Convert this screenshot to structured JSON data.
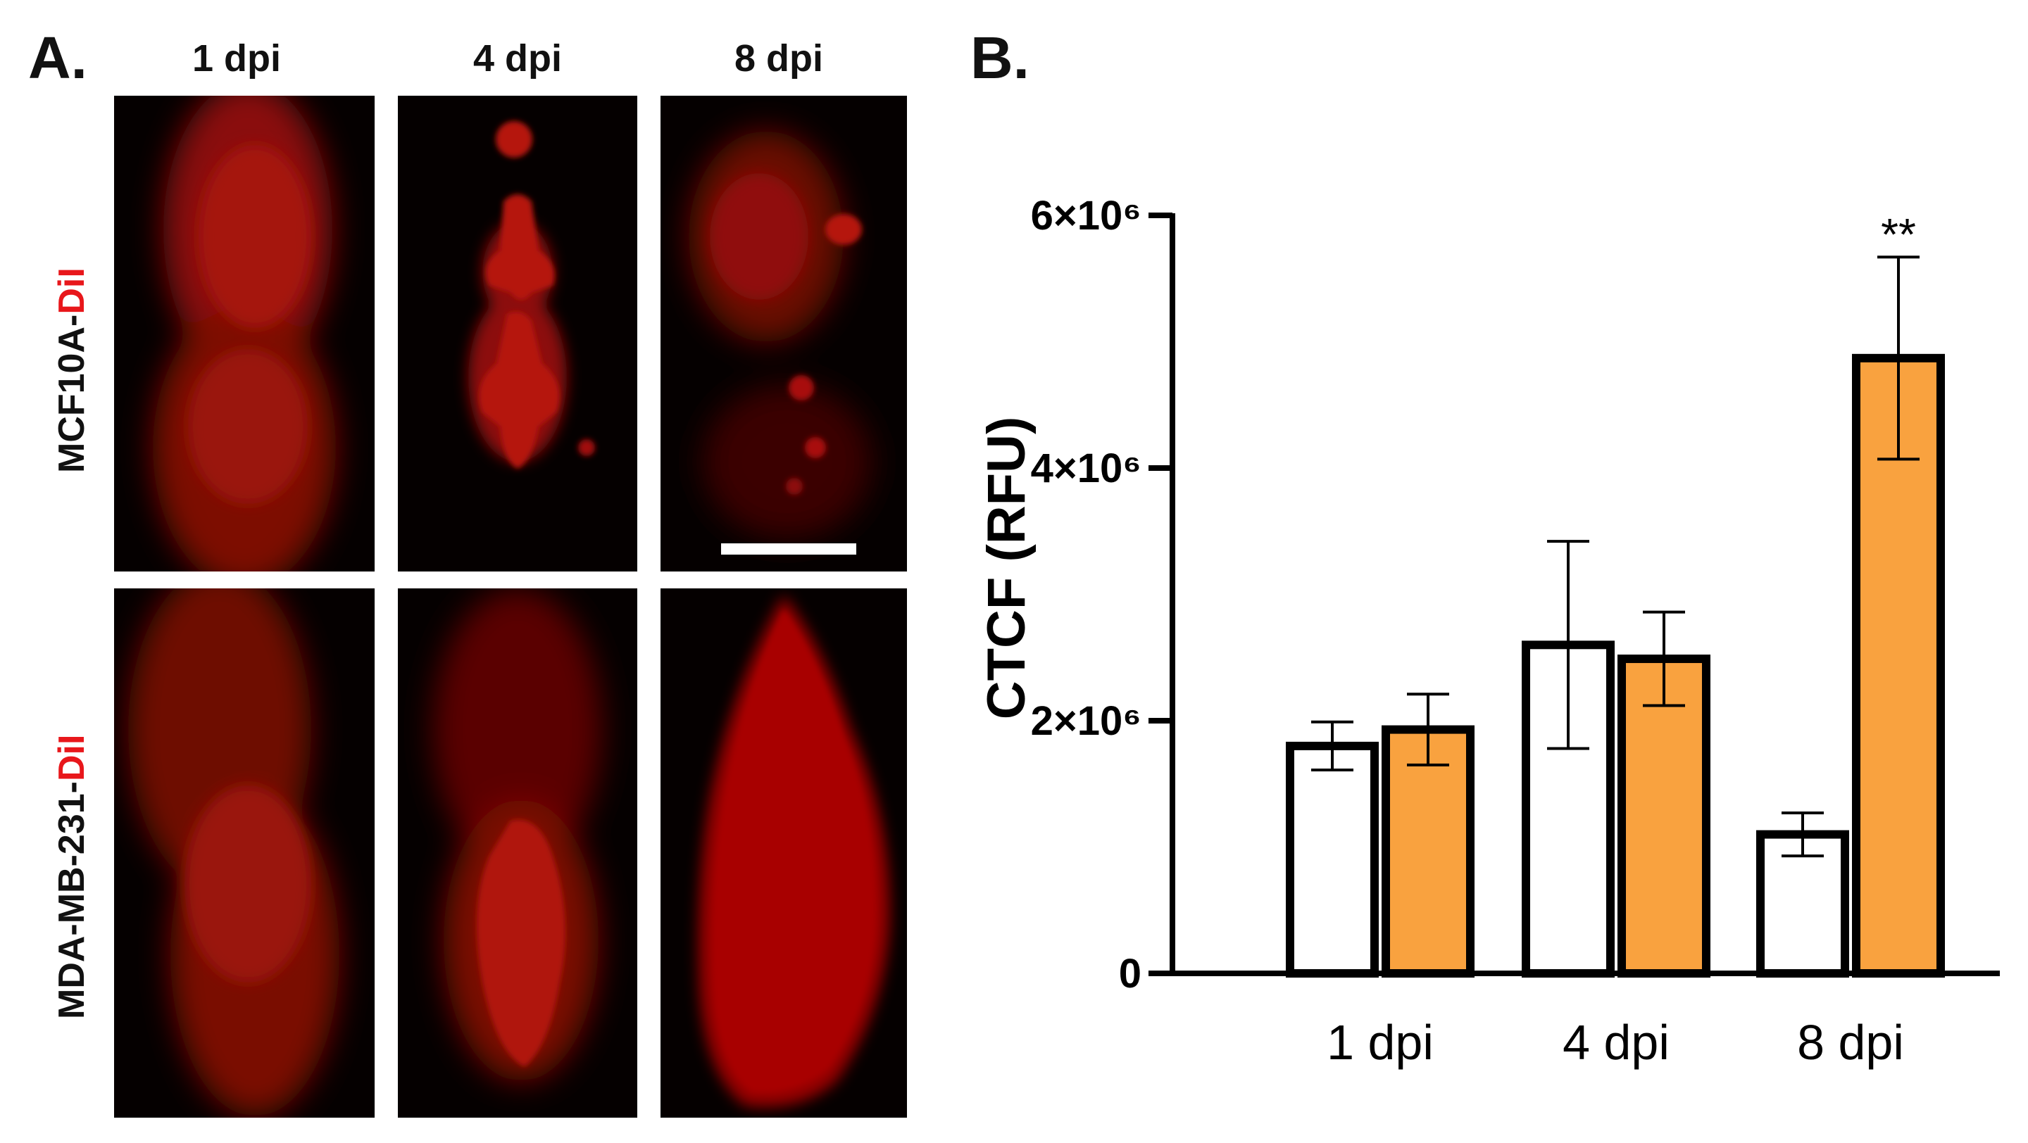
{
  "panel_a": {
    "letter": "A.",
    "columns": [
      "1 dpi",
      "4 dpi",
      "8 dpi"
    ],
    "rows": [
      {
        "cell": "MCF10A-",
        "dye": "DiI"
      },
      {
        "cell": "MDA-MB-231-",
        "dye": "DiI"
      }
    ],
    "colors": {
      "background": "#000000",
      "fluorescence": "#c00000",
      "scale_bar": "#ffffff"
    }
  },
  "panel_b": {
    "letter": "B."
  },
  "chart_data": {
    "type": "bar",
    "title": "",
    "xlabel": "",
    "ylabel": "CTCF (RFU)",
    "ylim": [
      0,
      6000000
    ],
    "yticks": [
      {
        "value": 0,
        "label": "0"
      },
      {
        "value": 2000000,
        "label": "2×10⁶"
      },
      {
        "value": 4000000,
        "label": "4×10⁶"
      },
      {
        "value": 6000000,
        "label": "6×10⁶"
      }
    ],
    "categories": [
      "1 dpi",
      "4 dpi",
      "8 dpi"
    ],
    "series": [
      {
        "color": "#ffffff",
        "values": [
          1800000,
          2600000,
          1100000
        ],
        "errors": [
          190000,
          820000,
          170000
        ]
      },
      {
        "color": "#f9a23f",
        "values": [
          1930000,
          2490000,
          4870000
        ],
        "errors": [
          280000,
          370000,
          800000
        ]
      }
    ],
    "annotations": [
      {
        "category": "8 dpi",
        "series": 1,
        "text": "**"
      }
    ],
    "grid": false,
    "legend": "none"
  }
}
